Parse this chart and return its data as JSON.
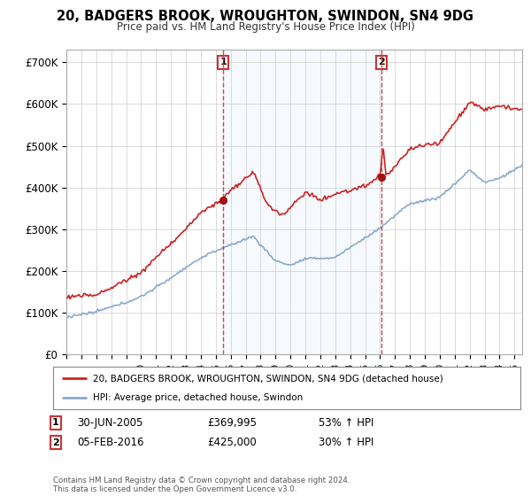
{
  "title": "20, BADGERS BROOK, WROUGHTON, SWINDON, SN4 9DG",
  "subtitle": "Price paid vs. HM Land Registry's House Price Index (HPI)",
  "ylabel_ticks": [
    "£0",
    "£100K",
    "£200K",
    "£300K",
    "£400K",
    "£500K",
    "£600K",
    "£700K"
  ],
  "ytick_values": [
    0,
    100000,
    200000,
    300000,
    400000,
    500000,
    600000,
    700000
  ],
  "ylim": [
    0,
    730000
  ],
  "xlim_start": 1995.0,
  "xlim_end": 2025.5,
  "sale1_x": 2005.5,
  "sale1_y": 369995,
  "sale1_label": "30-JUN-2005",
  "sale1_price": "£369,995",
  "sale1_hpi": "53% ↑ HPI",
  "sale2_x": 2016.1,
  "sale2_y": 425000,
  "sale2_label": "05-FEB-2016",
  "sale2_price": "£425,000",
  "sale2_hpi": "30% ↑ HPI",
  "legend_line1": "20, BADGERS BROOK, WROUGHTON, SWINDON, SN4 9DG (detached house)",
  "legend_line2": "HPI: Average price, detached house, Swindon",
  "footer": "Contains HM Land Registry data © Crown copyright and database right 2024.\nThis data is licensed under the Open Government Licence v3.0.",
  "price_line_color": "#cc2222",
  "hpi_line_color": "#88aacc",
  "vline_color": "#cc3333",
  "shade_color": "#ddeeff",
  "background_color": "#ffffff",
  "plot_bg_color": "#ffffff",
  "grid_color": "#cccccc"
}
